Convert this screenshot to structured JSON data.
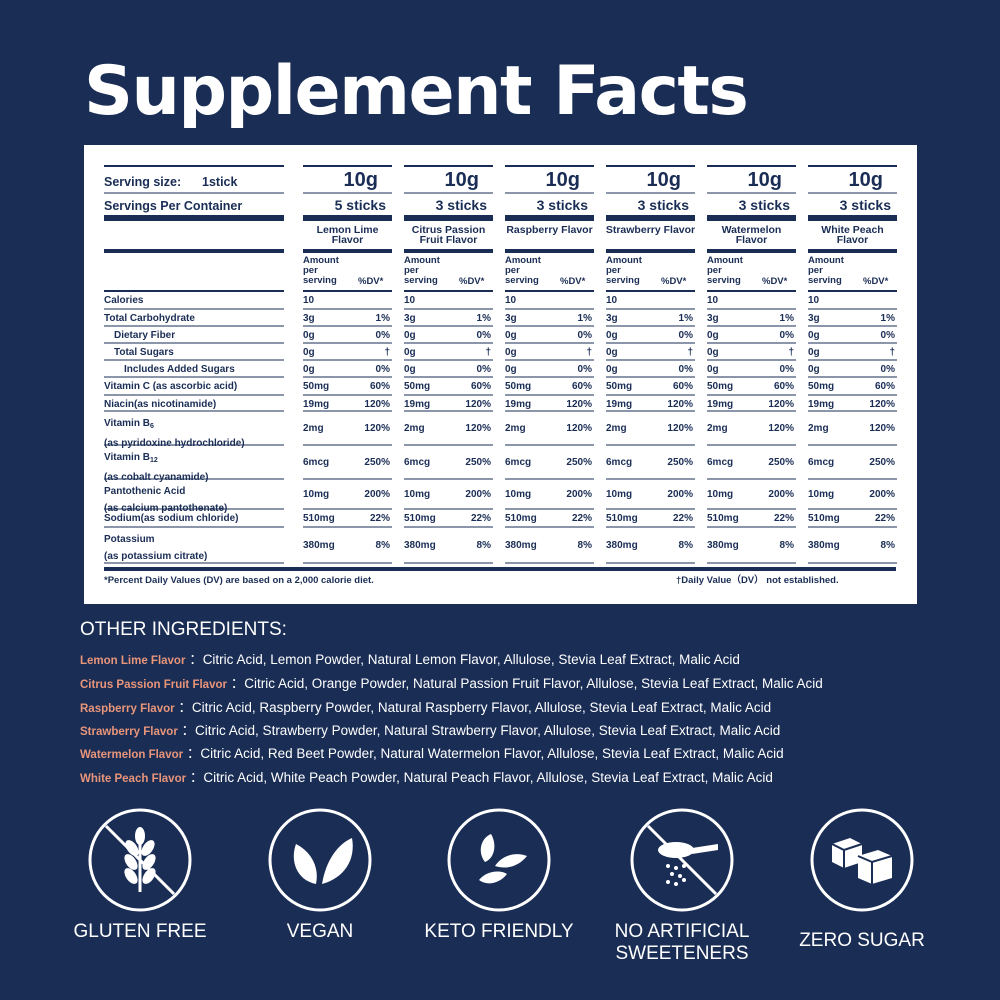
{
  "title": "Supplement Facts",
  "facts": {
    "serving_size_label": "Serving size:",
    "serving_size_value": "1stick",
    "servings_label": "Servings Per Container",
    "amount_label": "Amount\nper\nserving",
    "dv_label": "%DV*",
    "columns": [
      {
        "weight": "10g",
        "sticks": "5 sticks",
        "flavor": "Lemon Lime Flavor"
      },
      {
        "weight": "10g",
        "sticks": "3 sticks",
        "flavor": "Citrus Passion Fruit Flavor"
      },
      {
        "weight": "10g",
        "sticks": "3 sticks",
        "flavor": "Raspberry Flavor"
      },
      {
        "weight": "10g",
        "sticks": "3 sticks",
        "flavor": "Strawberry Flavor"
      },
      {
        "weight": "10g",
        "sticks": "3 sticks",
        "flavor": "Watermelon Flavor"
      },
      {
        "weight": "10g",
        "sticks": "3 sticks",
        "flavor": "White Peach Flavor"
      }
    ],
    "nutrients": [
      {
        "name": "Calories",
        "amount": "10",
        "dv": ""
      },
      {
        "name": "Total Carbohydrate",
        "amount": "3g",
        "dv": "1%"
      },
      {
        "name": "Dietary Fiber",
        "amount": "0g",
        "dv": "0%",
        "indent": 1
      },
      {
        "name": "Total Sugars",
        "amount": "0g",
        "dv": "†",
        "indent": 1
      },
      {
        "name": "Includes Added Sugars",
        "amount": "0g",
        "dv": "0%",
        "indent": 2
      },
      {
        "name": "Vitamin C (as ascorbic acid)",
        "amount": "50mg",
        "dv": "60%"
      },
      {
        "name": "Niacin(as nicotinamide)",
        "amount": "19mg",
        "dv": "120%"
      },
      {
        "name": "Vitamin B",
        "sub": "6",
        "name2": "(as pyridoxine hydrochloride)",
        "amount": "2mg",
        "dv": "120%"
      },
      {
        "name": "Vitamin B",
        "sub": "12",
        "name2": "(as cobalt cyanamide)",
        "amount": "6mcg",
        "dv": "250%"
      },
      {
        "name": "Pantothenic Acid",
        "name2": "(as calcium pantothenate)",
        "amount": "10mg",
        "dv": "200%"
      },
      {
        "name": "Sodium(as sodium chloride)",
        "amount": "510mg",
        "dv": "22%"
      },
      {
        "name": "Potassium",
        "name2": "(as potassium citrate)",
        "amount": "380mg",
        "dv": "8%"
      }
    ],
    "footnote_left": "*Percent Daily Values (DV) are based on a 2,000 calorie diet.",
    "footnote_right": "†Daily Value（DV） not established."
  },
  "other_ingredients": {
    "title": "OTHER INGREDIENTS:",
    "items": [
      {
        "flavor": "Lemon Lime  Flavor",
        "text": "：Citric Acid, Lemon Powder, Natural Lemon Flavor, Allulose, Stevia Leaf Extract, Malic Acid"
      },
      {
        "flavor": "Citrus Passion Fruit  Flavor",
        "text": "：Citric Acid, Orange Powder, Natural Passion Fruit Flavor, Allulose, Stevia Leaf Extract, Malic Acid"
      },
      {
        "flavor": "Raspberry  Flavor",
        "text": "：Citric Acid, Raspberry Powder, Natural Raspberry Flavor, Allulose, Stevia Leaf Extract, Malic Acid"
      },
      {
        "flavor": "Strawberry  Flavor",
        "text": "：Citric Acid, Strawberry Powder, Natural Strawberry Flavor, Allulose, Stevia Leaf Extract, Malic Acid"
      },
      {
        "flavor": "Watermelon  Flavor",
        "text": "：Citric Acid, Red Beet Powder, Natural Watermelon Flavor, Allulose, Stevia Leaf Extract, Malic Acid"
      },
      {
        "flavor": "White Peach  Flavor",
        "text": "：Citric Acid, White Peach Powder, Natural Peach Flavor, Allulose, Stevia Leaf Extract, Malic Acid"
      }
    ]
  },
  "badges": [
    {
      "label": "GLUTEN FREE",
      "icon": "wheat-crossed-icon"
    },
    {
      "label": "VEGAN",
      "icon": "leaves-icon"
    },
    {
      "label": "KETO FRIENDLY",
      "icon": "seeds-icon"
    },
    {
      "label": "NO ARTIFICIAL\nSWEETENERS",
      "icon": "sweetener-spoon-crossed-icon"
    },
    {
      "label": "ZERO SUGAR",
      "icon": "sugar-cubes-icon"
    }
  ],
  "colors": {
    "background": "#1a2d55",
    "accent": "#e8957a",
    "panel": "#ffffff"
  }
}
